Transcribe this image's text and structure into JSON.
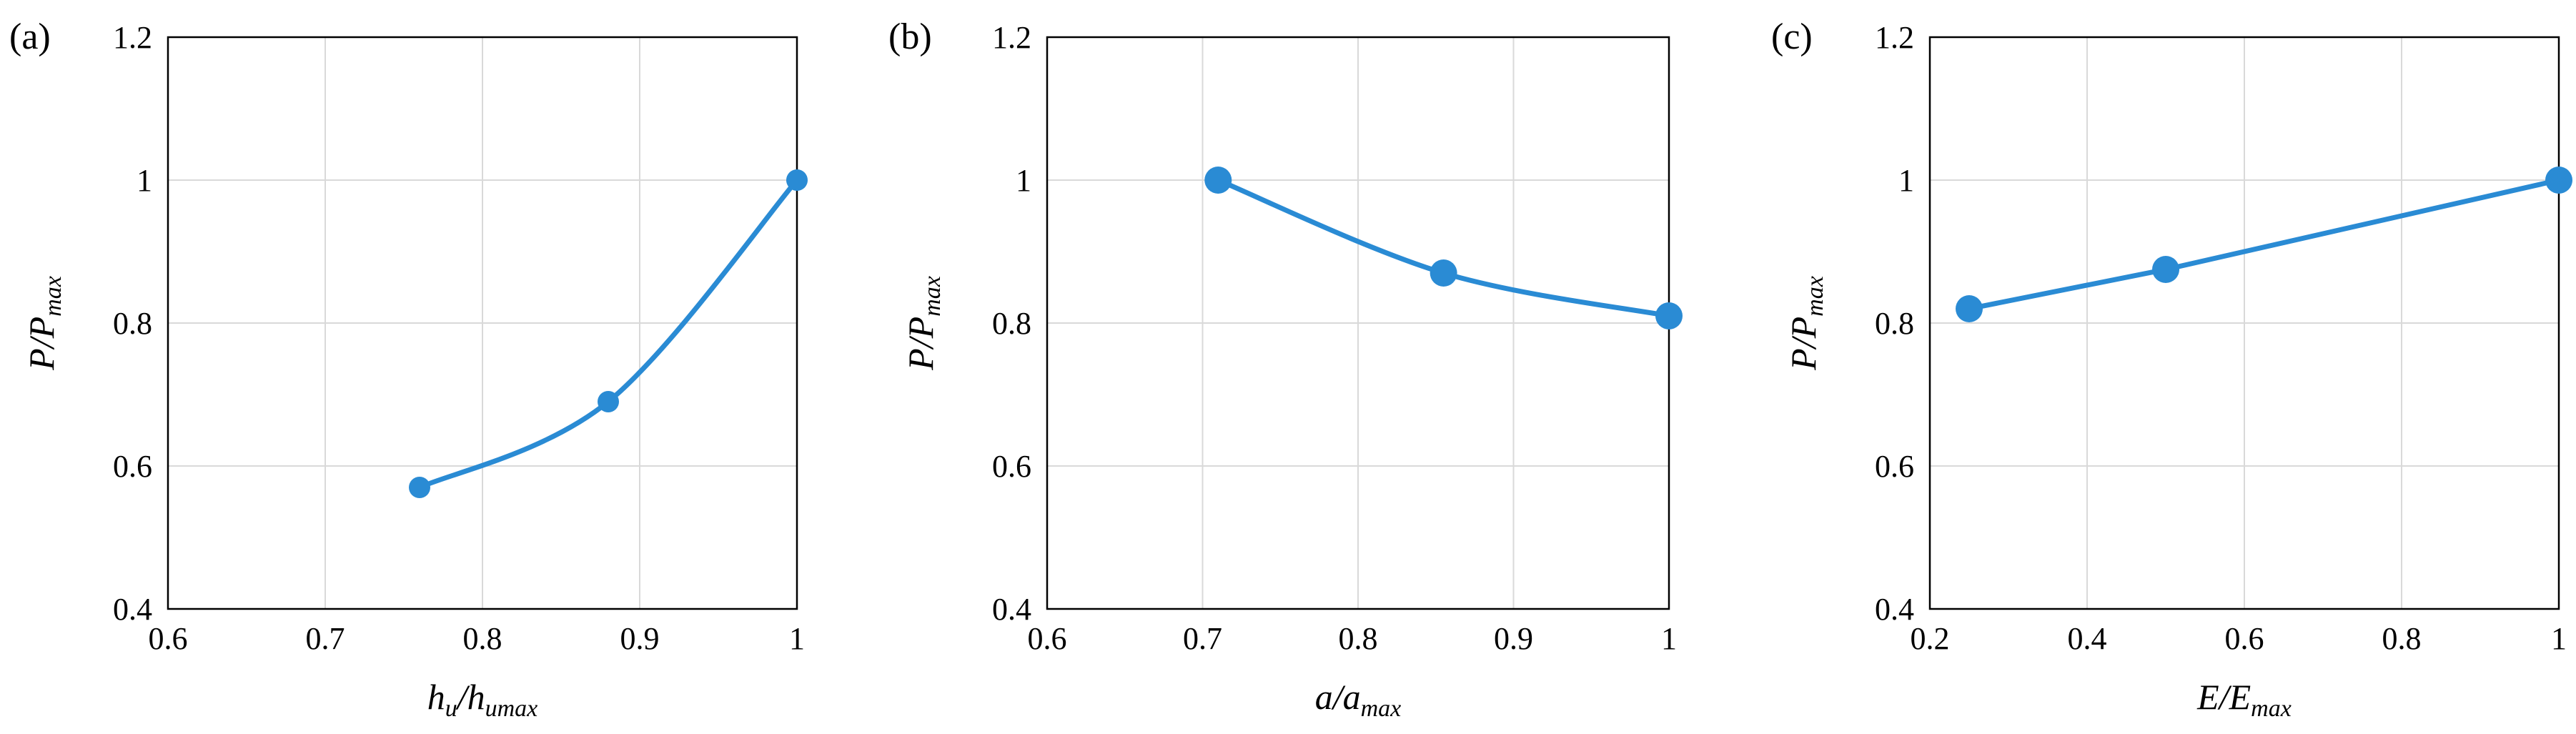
{
  "colors": {
    "series": "#2a8bd4",
    "grid": "#d9d9d9",
    "axis": "#000000"
  },
  "chart_data": [
    {
      "type": "line",
      "panel_label": "(a)",
      "title": "",
      "xlabel": {
        "main": "h",
        "sub": "u",
        "sep": "/",
        "main2": "h",
        "sub2": "umax"
      },
      "ylabel": {
        "main": "P",
        "sep": "/",
        "main2": "P",
        "sub2": "max"
      },
      "xlim": [
        0.6,
        1.0
      ],
      "ylim": [
        0.4,
        1.2
      ],
      "xticks": [
        "0.6",
        "0.7",
        "0.8",
        "0.9",
        "1"
      ],
      "yticks": [
        "0.4",
        "0.6",
        "0.8",
        "1",
        "1.2"
      ],
      "grid": true,
      "smooth": true,
      "series": [
        {
          "x": [
            0.76,
            0.88,
            1.0
          ],
          "y": [
            0.57,
            0.69,
            1.0
          ]
        }
      ]
    },
    {
      "type": "line",
      "panel_label": "(b)",
      "title": "",
      "xlabel": {
        "main": "a",
        "sep": "/",
        "main2": "a",
        "sub2": "max"
      },
      "ylabel": {
        "main": "P",
        "sep": "/",
        "main2": "P",
        "sub2": "max"
      },
      "xlim": [
        0.6,
        1.0
      ],
      "ylim": [
        0.4,
        1.2
      ],
      "xticks": [
        "0.6",
        "0.7",
        "0.8",
        "0.9",
        "1"
      ],
      "yticks": [
        "0.4",
        "0.6",
        "0.8",
        "1",
        "1.2"
      ],
      "grid": true,
      "smooth": true,
      "series": [
        {
          "x": [
            0.71,
            0.855,
            1.0
          ],
          "y": [
            1.0,
            0.87,
            0.81
          ]
        }
      ]
    },
    {
      "type": "line",
      "panel_label": "(c)",
      "title": "",
      "xlabel": {
        "main": "E",
        "sep": "/",
        "main2": "E",
        "sub2": "max"
      },
      "ylabel": {
        "main": "P",
        "sep": "/",
        "main2": "P",
        "sub2": "max"
      },
      "xlim": [
        0.2,
        1.0
      ],
      "ylim": [
        0.4,
        1.2
      ],
      "xticks": [
        "0.2",
        "0.4",
        "0.6",
        "0.8",
        "1"
      ],
      "yticks": [
        "0.4",
        "0.6",
        "0.8",
        "1",
        "1.2"
      ],
      "grid": true,
      "smooth": false,
      "series": [
        {
          "x": [
            0.25,
            0.5,
            1.0
          ],
          "y": [
            0.82,
            0.875,
            1.0
          ]
        }
      ]
    }
  ]
}
